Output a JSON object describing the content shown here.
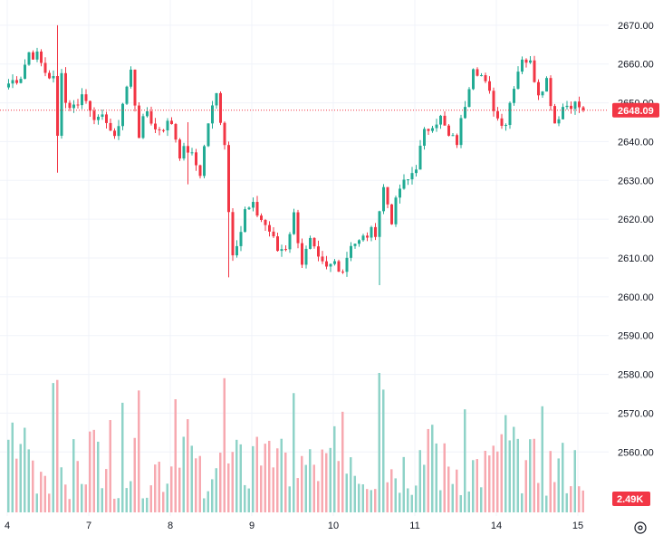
{
  "chart_data": {
    "type": "candlestick",
    "title": "",
    "xlabel": "",
    "ylabel": "",
    "price_axis": {
      "ticks": [
        "2670.00",
        "2660.00",
        "2650.00",
        "2640.00",
        "2630.00",
        "2620.00",
        "2610.00",
        "2600.00",
        "2590.00",
        "2580.00",
        "2570.00",
        "2560.00"
      ],
      "ylim": [
        2547,
        2673
      ]
    },
    "time_axis": {
      "labels": [
        {
          "label": "4",
          "index": 0
        },
        {
          "label": "7",
          "index": 20
        },
        {
          "label": "8",
          "index": 40
        },
        {
          "label": "9",
          "index": 60
        },
        {
          "label": "10",
          "index": 80
        },
        {
          "label": "11",
          "index": 100
        },
        {
          "label": "14",
          "index": 120
        },
        {
          "label": "15",
          "index": 140
        }
      ],
      "bar_count": 142
    },
    "last_price": {
      "value": 2648.09,
      "label": "2648.09"
    },
    "volume": {
      "last_label": "2.49K",
      "max": 3200
    },
    "colors": {
      "up": "#22ab94",
      "down": "#f23645",
      "up_volume": "#8fd3c8",
      "down_volume": "#f7a9b0",
      "price_line": "#f23645",
      "grid": "#f0f3fa"
    },
    "grid": true,
    "ohlc_anchors": [
      {
        "i": 0,
        "close": 2655
      },
      {
        "i": 3,
        "close": 2657
      },
      {
        "i": 5,
        "close": 2663
      },
      {
        "i": 7,
        "close": 2662
      },
      {
        "i": 9,
        "close": 2658
      },
      {
        "i": 11,
        "close": 2656
      },
      {
        "i": 12,
        "close": 2641
      },
      {
        "i": 13,
        "close": 2659
      },
      {
        "i": 14,
        "close": 2650
      },
      {
        "i": 16,
        "close": 2649
      },
      {
        "i": 18,
        "close": 2652
      },
      {
        "i": 20,
        "close": 2649
      },
      {
        "i": 22,
        "close": 2645
      },
      {
        "i": 24,
        "close": 2646
      },
      {
        "i": 26,
        "close": 2640
      },
      {
        "i": 28,
        "close": 2650
      },
      {
        "i": 30,
        "close": 2658
      },
      {
        "i": 32,
        "close": 2642
      },
      {
        "i": 34,
        "close": 2648
      },
      {
        "i": 36,
        "close": 2643
      },
      {
        "i": 38,
        "close": 2644
      },
      {
        "i": 40,
        "close": 2645
      },
      {
        "i": 42,
        "close": 2637
      },
      {
        "i": 44,
        "close": 2638
      },
      {
        "i": 47,
        "close": 2632
      },
      {
        "i": 49,
        "close": 2645
      },
      {
        "i": 51,
        "close": 2652
      },
      {
        "i": 53,
        "close": 2640
      },
      {
        "i": 54,
        "close": 2622
      },
      {
        "i": 55,
        "close": 2612
      },
      {
        "i": 57,
        "close": 2617
      },
      {
        "i": 58,
        "close": 2622
      },
      {
        "i": 60,
        "close": 2623
      },
      {
        "i": 62,
        "close": 2620
      },
      {
        "i": 64,
        "close": 2617
      },
      {
        "i": 66,
        "close": 2612
      },
      {
        "i": 68,
        "close": 2613
      },
      {
        "i": 70,
        "close": 2621
      },
      {
        "i": 72,
        "close": 2609
      },
      {
        "i": 74,
        "close": 2614
      },
      {
        "i": 76,
        "close": 2609
      },
      {
        "i": 78,
        "close": 2607
      },
      {
        "i": 80,
        "close": 2609
      },
      {
        "i": 82,
        "close": 2607
      },
      {
        "i": 84,
        "close": 2614
      },
      {
        "i": 86,
        "close": 2614
      },
      {
        "i": 88,
        "close": 2616
      },
      {
        "i": 90,
        "close": 2617
      },
      {
        "i": 92,
        "close": 2628
      },
      {
        "i": 94,
        "close": 2620
      },
      {
        "i": 96,
        "close": 2628
      },
      {
        "i": 98,
        "close": 2630
      },
      {
        "i": 100,
        "close": 2634
      },
      {
        "i": 102,
        "close": 2642
      },
      {
        "i": 104,
        "close": 2645
      },
      {
        "i": 106,
        "close": 2646
      },
      {
        "i": 108,
        "close": 2641
      },
      {
        "i": 110,
        "close": 2640
      },
      {
        "i": 112,
        "close": 2650
      },
      {
        "i": 114,
        "close": 2660
      },
      {
        "i": 116,
        "close": 2657
      },
      {
        "i": 118,
        "close": 2652
      },
      {
        "i": 120,
        "close": 2646
      },
      {
        "i": 122,
        "close": 2645
      },
      {
        "i": 124,
        "close": 2655
      },
      {
        "i": 126,
        "close": 2662
      },
      {
        "i": 128,
        "close": 2660
      },
      {
        "i": 130,
        "close": 2653
      },
      {
        "i": 132,
        "close": 2656
      },
      {
        "i": 134,
        "close": 2645
      },
      {
        "i": 136,
        "close": 2649
      },
      {
        "i": 138,
        "close": 2650
      },
      {
        "i": 140,
        "close": 2649
      },
      {
        "i": 141,
        "close": 2648
      }
    ],
    "wick_extremes": [
      {
        "i": 12,
        "high": 2670,
        "low": 2632
      },
      {
        "i": 44,
        "high": 2645,
        "low": 2629
      },
      {
        "i": 54,
        "high": 2640,
        "low": 2605
      },
      {
        "i": 91,
        "high": 2620,
        "low": 2603
      }
    ],
    "volume_peaks": [
      {
        "i": 11,
        "value": 2950
      },
      {
        "i": 12,
        "value": 3020
      },
      {
        "i": 28,
        "value": 2500
      },
      {
        "i": 32,
        "value": 2780
      },
      {
        "i": 41,
        "value": 2580
      },
      {
        "i": 53,
        "value": 3060
      },
      {
        "i": 70,
        "value": 2720
      },
      {
        "i": 91,
        "value": 3180
      },
      {
        "i": 92,
        "value": 2800
      },
      {
        "i": 112,
        "value": 2350
      },
      {
        "i": 131,
        "value": 2420
      }
    ]
  }
}
